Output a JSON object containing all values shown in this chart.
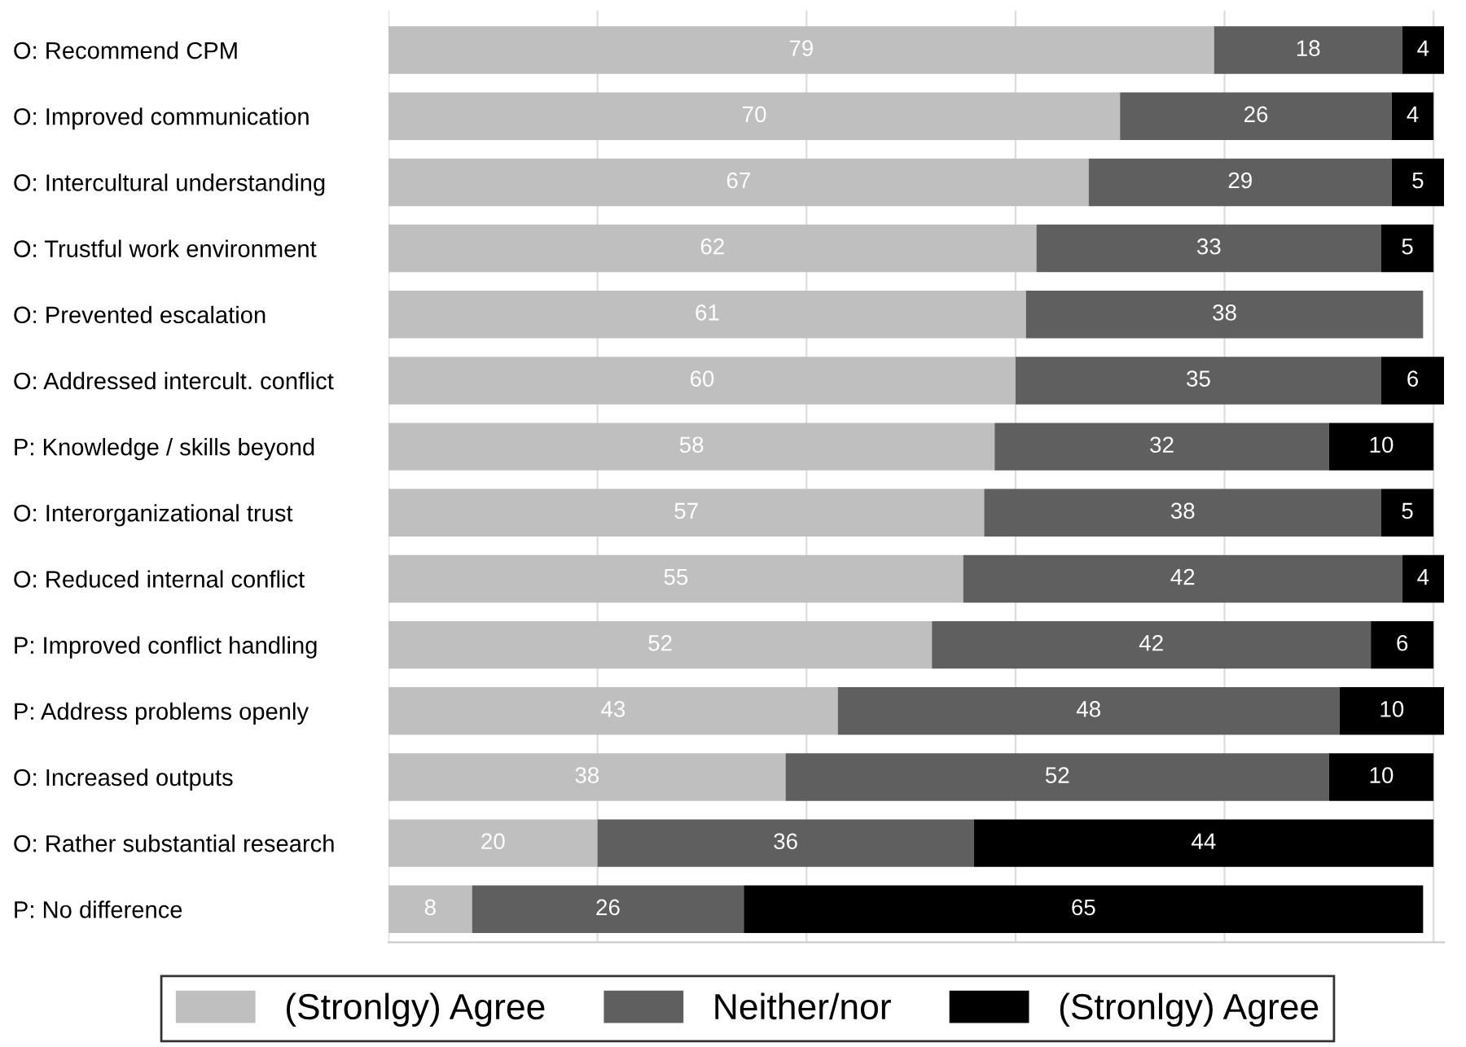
{
  "chart_data": {
    "type": "bar",
    "orientation": "horizontal",
    "stacked": true,
    "data_labels": true,
    "grid": "x",
    "legend": "bottom",
    "tick_labels": "y",
    "xlim": [
      0,
      101
    ],
    "xticks": [
      {
        "value": 0,
        "label": null
      },
      {
        "value": 20,
        "label": null
      },
      {
        "value": 40,
        "label": null
      },
      {
        "value": 60,
        "label": null
      },
      {
        "value": 80,
        "label": null
      },
      {
        "value": 100,
        "label": null
      }
    ],
    "categories": [
      "O: Recommend CPM",
      "O: Improved communication",
      "O: Intercultural understanding",
      "O: Trustful work environment",
      "O: Prevented escalation",
      "O: Addressed intercult. conflict",
      "P: Knowledge / skills beyond",
      "O: Interorganizational trust",
      "O: Reduced internal conflict",
      "P: Improved conflict handling",
      "P: Address problems openly",
      "O: Increased outputs",
      "O: Rather substantial research",
      "P: No difference"
    ],
    "series": [
      {
        "name": "(Stronlgy) Agree",
        "color": "#bfbfbf",
        "values": [
          79,
          70,
          67,
          62,
          61,
          60,
          58,
          57,
          55,
          52,
          43,
          38,
          20,
          8
        ]
      },
      {
        "name": "Neither/nor",
        "color": "#5f5f5f",
        "values": [
          18,
          26,
          29,
          33,
          38,
          35,
          32,
          38,
          42,
          42,
          48,
          52,
          36,
          26
        ]
      },
      {
        "name": "(Stronlgy) Agree",
        "color": "#000000",
        "values": [
          4,
          4,
          5,
          5,
          null,
          6,
          10,
          5,
          4,
          6,
          10,
          10,
          44,
          65
        ]
      }
    ]
  }
}
